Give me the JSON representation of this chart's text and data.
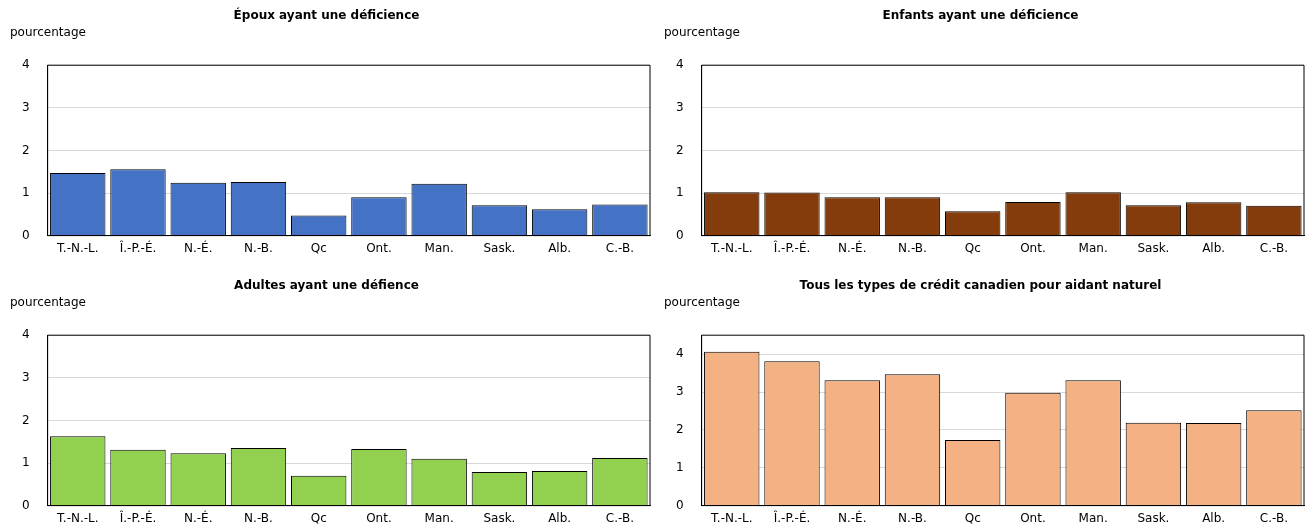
{
  "chart_data": [
    {
      "type": "bar",
      "title": "Époux ayant une déficience",
      "ylabel": "pourcentage",
      "categories": [
        "T.-N.-L.",
        "Î.-P.-É.",
        "N.-É.",
        "N.-B.",
        "Qc",
        "Ont.",
        "Man.",
        "Sask.",
        "Alb.",
        "C.-B."
      ],
      "values": [
        1.47,
        1.56,
        1.24,
        1.26,
        0.47,
        0.9,
        1.22,
        0.71,
        0.62,
        0.73
      ],
      "color": "#4472c4",
      "ylim": [
        0,
        4
      ],
      "yticks": [
        0,
        1,
        2,
        3,
        4
      ],
      "grid": "y"
    },
    {
      "type": "bar",
      "title": "Enfants ayant une déficience",
      "ylabel": "pourcentage",
      "categories": [
        "T.-N.-L.",
        "Î.-P.-É.",
        "N.-É.",
        "N.-B.",
        "Qc",
        "Ont.",
        "Man.",
        "Sask.",
        "Alb.",
        "C.-B."
      ],
      "values": [
        1.02,
        1.01,
        0.9,
        0.9,
        0.57,
        0.79,
        1.02,
        0.71,
        0.78,
        0.7
      ],
      "color": "#843c0c",
      "ylim": [
        0,
        4
      ],
      "yticks": [
        0,
        1,
        2,
        3,
        4
      ],
      "grid": "y"
    },
    {
      "type": "bar",
      "title": "Adultes ayant une défience",
      "ylabel": "pourcentage",
      "categories": [
        "T.-N.-L.",
        "Î.-P.-É.",
        "N.-É.",
        "N.-B.",
        "Qc",
        "Ont.",
        "Man.",
        "Sask.",
        "Alb.",
        "C.-B."
      ],
      "values": [
        1.63,
        1.31,
        1.23,
        1.35,
        0.7,
        1.33,
        1.1,
        0.79,
        0.81,
        1.12
      ],
      "color": "#92d050",
      "ylim": [
        0,
        4
      ],
      "yticks": [
        0,
        1,
        2,
        3,
        4
      ],
      "grid": "y"
    },
    {
      "type": "bar",
      "title": "Tous les types de crédit canadien pour aidant naturel",
      "ylabel": "pourcentage",
      "categories": [
        "T.-N.-L.",
        "Î.-P.-É.",
        "N.-É.",
        "N.-B.",
        "Qc",
        "Ont.",
        "Man.",
        "Sask.",
        "Alb.",
        "C.-B."
      ],
      "values": [
        4.06,
        3.81,
        3.31,
        3.47,
        1.73,
        2.98,
        3.31,
        2.19,
        2.18,
        2.52
      ],
      "color": "#f4b183",
      "ylim": [
        0,
        4.5
      ],
      "yticks": [
        0,
        1,
        2,
        3,
        4
      ],
      "grid": "y"
    }
  ]
}
